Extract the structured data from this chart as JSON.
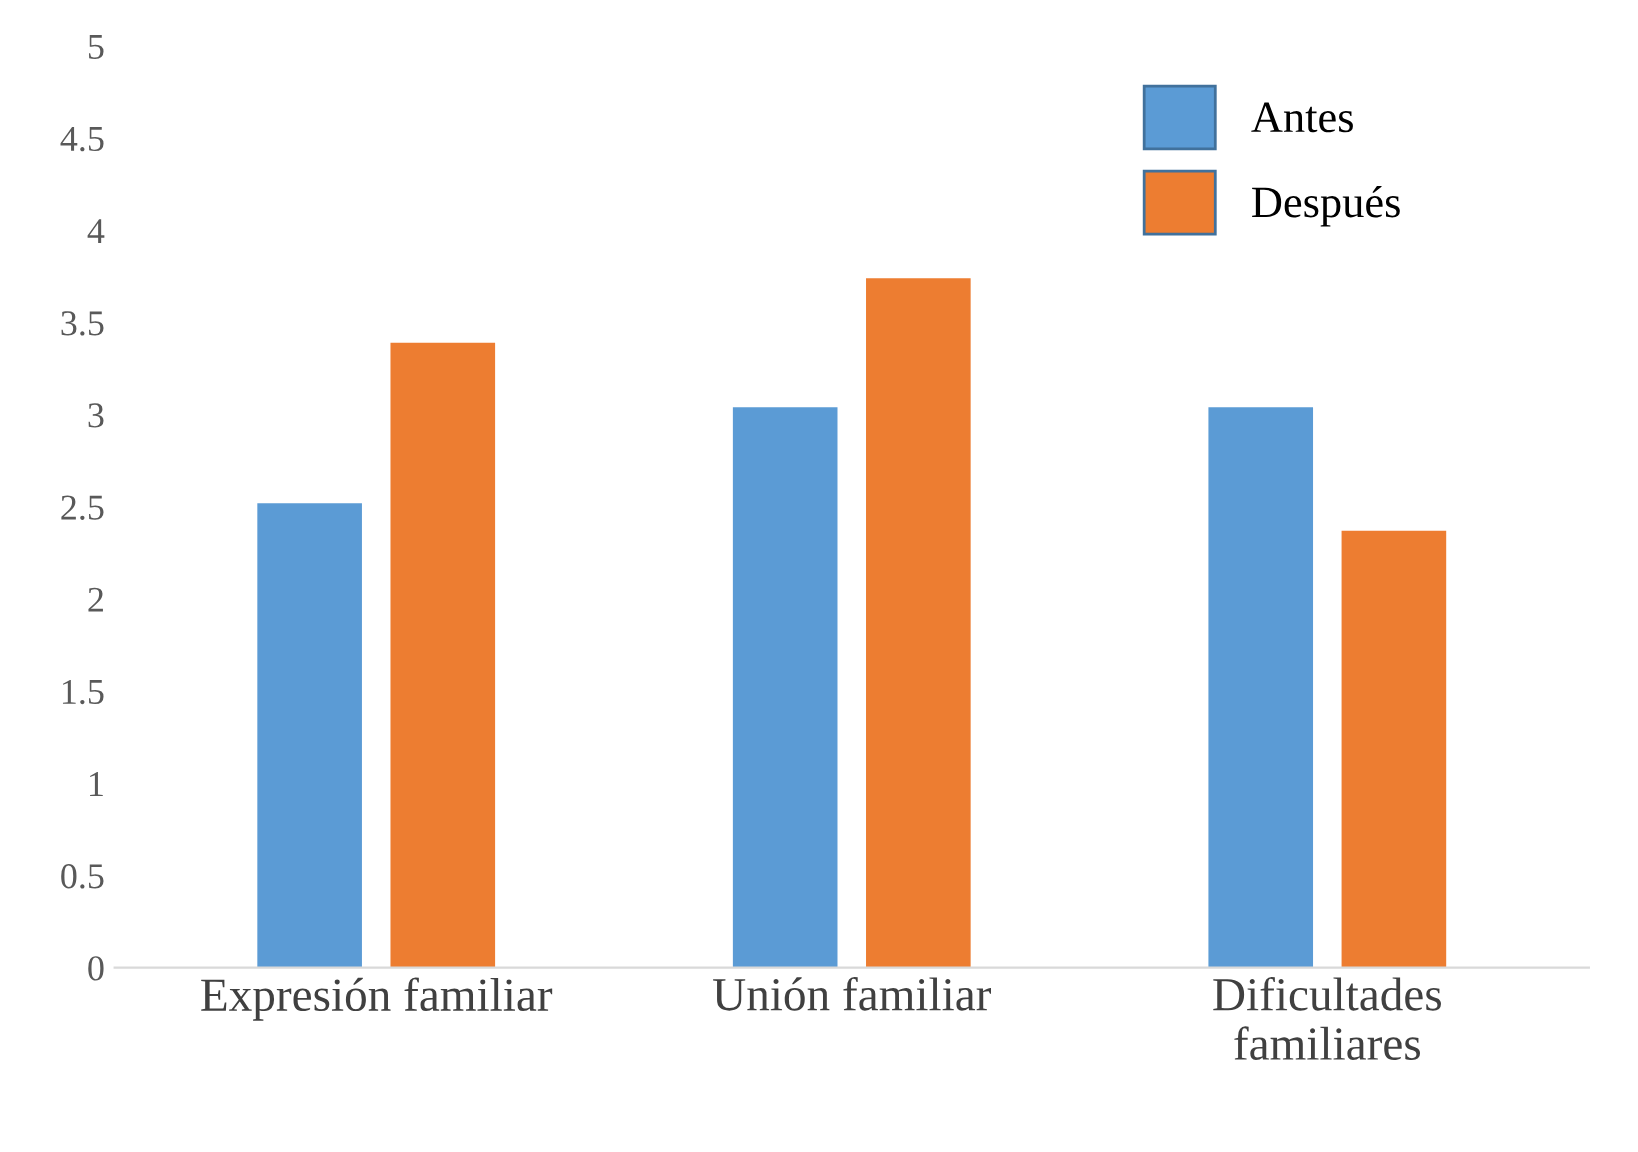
{
  "chart_data": {
    "type": "bar",
    "categories": [
      "Expresión familiar",
      "Unión familiar",
      "Dificultades\nfamiliares"
    ],
    "series": [
      {
        "name": "Antes",
        "color": "#5b9bd5",
        "values": [
          2.52,
          3.04,
          3.04
        ]
      },
      {
        "name": "Después",
        "color": "#ed7d31",
        "values": [
          3.39,
          3.74,
          2.37
        ]
      }
    ],
    "ylim": [
      0,
      5
    ],
    "yticks": [
      0,
      0.5,
      1,
      1.5,
      2,
      2.5,
      3,
      3.5,
      4,
      4.5,
      5
    ],
    "grid": false,
    "legend": "top right"
  }
}
